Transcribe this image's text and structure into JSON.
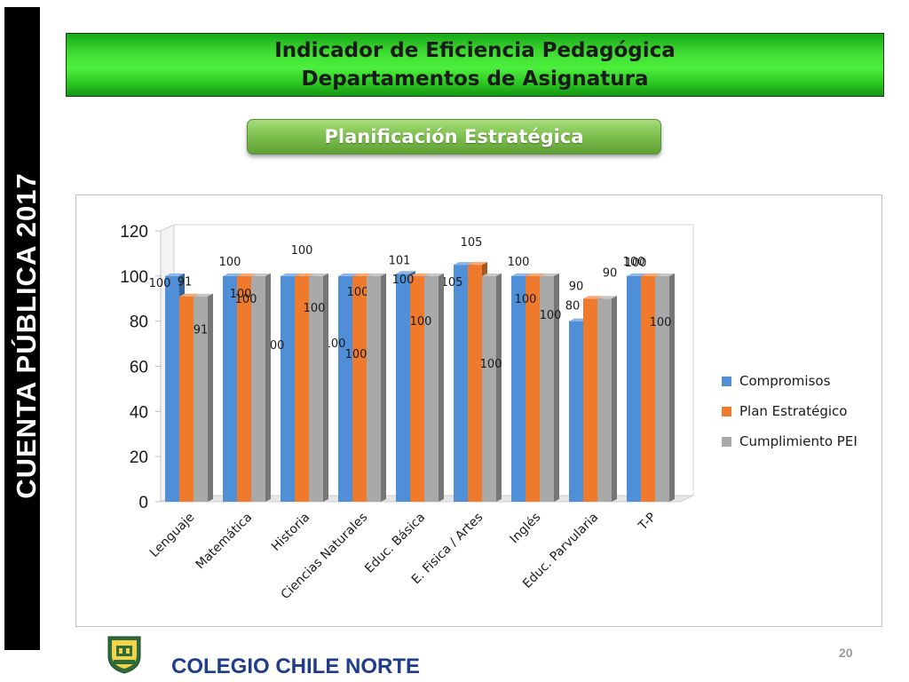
{
  "sidebar": {
    "text": "CUENTA  PÚBLICA  2017"
  },
  "header": {
    "title_line1": "Indicador de Eficiencia Pedagógica",
    "title_line2": "Departamentos de Asignatura",
    "subtitle": "Planificación Estratégica"
  },
  "footer": {
    "school_name": "COLEGIO CHILE NORTE",
    "page_number": "20"
  },
  "chart_data": {
    "type": "bar",
    "categories": [
      "Lenguaje",
      "Matemática",
      "Historia",
      "Ciencias Naturales",
      "Educ. Básica",
      "E. Fisica / Artes",
      "Inglés",
      "Educ. Parvularia",
      "T-P"
    ],
    "series": [
      {
        "name": "Compromisos",
        "color": "#4f8fd8",
        "values": [
          100,
          100,
          100,
          100,
          101,
          105,
          100,
          80,
          100
        ]
      },
      {
        "name": "Plan Estratégico",
        "color": "#f07a2c",
        "values": [
          91,
          100,
          100,
          100,
          100,
          105,
          100,
          90,
          100
        ]
      },
      {
        "name": "Cumplimiento  PEI",
        "color": "#a9a9a9",
        "values": [
          91,
          100,
          100,
          100,
          100,
          100,
          100,
          90,
          100
        ]
      }
    ],
    "data_labels": {
      "Compromisos": [
        "100",
        "100",
        "100",
        "100",
        "101",
        "105",
        "100",
        "80",
        "100"
      ],
      "Plan Estratégico": [
        "91",
        "100",
        "100",
        "100",
        "100",
        "105",
        "100",
        "90",
        "100"
      ],
      "Cumplimiento  PEI": [
        "91",
        "100",
        "100",
        "100",
        "100",
        "100",
        "100",
        "90",
        "100"
      ]
    },
    "yticks": [
      "0",
      "20",
      "40",
      "60",
      "80",
      "100",
      "120"
    ],
    "ylim": [
      0,
      120
    ],
    "grid": false,
    "legend": "right",
    "title": "",
    "xlabel": "",
    "ylabel": ""
  }
}
